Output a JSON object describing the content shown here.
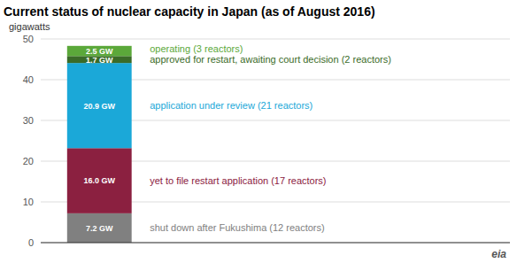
{
  "chart_data": {
    "type": "bar",
    "stacked": true,
    "title": "Current status of nuclear capacity in Japan (as of August 2016)",
    "y_label": "gigawatts",
    "categories": [
      null
    ],
    "series": [
      {
        "name": "shut down after Fukushima (12 reactors)",
        "color": "#808080",
        "values": [
          7.2
        ],
        "value_labels": [
          "7.2 GW"
        ]
      },
      {
        "name": "yet to file restart application (17 reactors)",
        "color": "#8B2040",
        "values": [
          16.0
        ],
        "value_labels": [
          "16.0 GW"
        ]
      },
      {
        "name": "application under review (21 reactors)",
        "color": "#1BA8D8",
        "values": [
          20.9
        ],
        "value_labels": [
          "20.9 GW"
        ]
      },
      {
        "name": "approved for restart, awaiting court decision (2 reactors)",
        "color": "#3A6B28",
        "values": [
          1.7
        ],
        "value_labels": [
          "1.7 GW"
        ]
      },
      {
        "name": "operating (3 reactors)",
        "color": "#5BA83A",
        "values": [
          2.5
        ],
        "value_labels": [
          "2.5 GW"
        ]
      }
    ],
    "ylim": [
      0,
      50
    ],
    "yticks": [
      0,
      10,
      20,
      30,
      40,
      50
    ],
    "grid": true,
    "data_labels": true,
    "tick_labels": "y",
    "annotations": [
      "eia"
    ]
  }
}
